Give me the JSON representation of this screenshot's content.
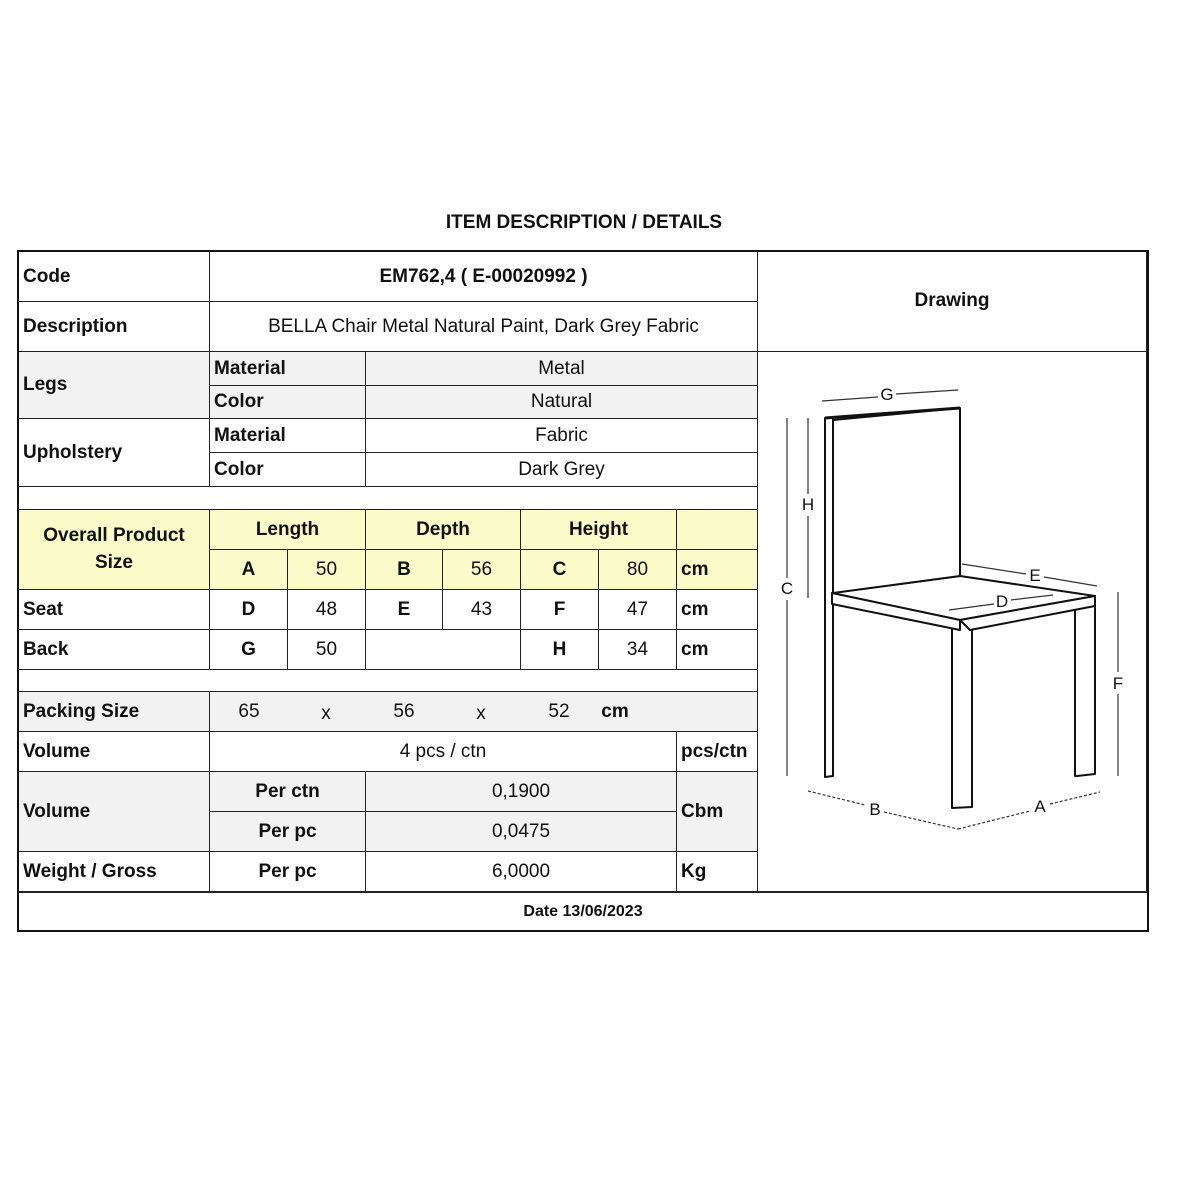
{
  "title": "ITEM DESCRIPTION / DETAILS",
  "code": {
    "label": "Code",
    "value": "EM762,4  ( E-00020992 )"
  },
  "description": {
    "label": "Description",
    "value": "BELLA Chair Metal Natural Paint, Dark Grey Fabric"
  },
  "drawing_label": "Drawing",
  "legs": {
    "label": "Legs",
    "material_label": "Material",
    "material": "Metal",
    "color_label": "Color",
    "color": "Natural"
  },
  "upholstery": {
    "label": "Upholstery",
    "material_label": "Material",
    "material": "Fabric",
    "color_label": "Color",
    "color": "Dark Grey"
  },
  "size": {
    "label": "Overall Product Size",
    "headers": [
      "Length",
      "Depth",
      "Height"
    ],
    "overall": [
      "A",
      "50",
      "B",
      "56",
      "C",
      "80",
      "cm"
    ],
    "seat": {
      "label": "Seat",
      "values": [
        "D",
        "48",
        "E",
        "43",
        "F",
        "47",
        "cm"
      ]
    },
    "back": {
      "label": "Back",
      "values": [
        "G",
        "50",
        "H",
        "34",
        "cm"
      ]
    }
  },
  "packing": {
    "label": "Packing Size",
    "values": [
      "65",
      "x",
      "56",
      "x",
      "52",
      "cm"
    ]
  },
  "volume_pcs": {
    "label": "Volume",
    "value": "4 pcs / ctn",
    "unit": "pcs/ctn"
  },
  "volume_cbm": {
    "label": "Volume",
    "per_ctn_label": "Per ctn",
    "per_ctn": "0,1900",
    "per_pc_label": "Per pc",
    "per_pc": "0,0475",
    "unit": "Cbm"
  },
  "weight": {
    "label": "Weight / Gross",
    "per_pc_label": "Per pc",
    "value": "6,0000",
    "unit": "Kg"
  },
  "date": "Date 13/06/2023",
  "drawing_labels": [
    "G",
    "H",
    "C",
    "E",
    "D",
    "F",
    "B",
    "A"
  ],
  "colors": {
    "header_yellow": "#fbfbc9",
    "row_grey": "#f2f2f2"
  }
}
